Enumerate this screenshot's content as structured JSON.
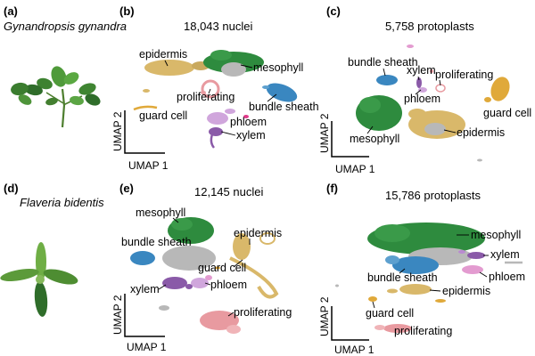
{
  "panels": {
    "a": {
      "letter": "(a)",
      "species": "Gynandropsis gynandra"
    },
    "b": {
      "letter": "(b)",
      "title": "18,043 nuclei",
      "labels": {
        "epidermis": "epidermis",
        "mesophyll": "mesophyll",
        "proliferating": "proliferating",
        "bundle_sheath": "bundle sheath",
        "guard_cell": "guard cell",
        "phloem": "phloem",
        "xylem": "xylem"
      }
    },
    "c": {
      "letter": "(c)",
      "title": "5,758 protoplasts",
      "labels": {
        "bundle_sheath": "bundle sheath",
        "xylem": "xylem",
        "proliferating": "proliferating",
        "phloem": "phloem",
        "guard_cell": "guard cell",
        "mesophyll": "mesophyll",
        "epidermis": "epidermis"
      }
    },
    "d": {
      "letter": "(d)",
      "species": "Flaveria bidentis"
    },
    "e": {
      "letter": "(e)",
      "title": "12,145 nuclei",
      "labels": {
        "mesophyll": "mesophyll",
        "epidermis": "epidermis",
        "bundle_sheath": "bundle sheath",
        "guard_cell": "guard cell",
        "xylem": "xylem",
        "phloem": "phloem",
        "proliferating": "proliferating"
      }
    },
    "f": {
      "letter": "(f)",
      "title": "15,786 protoplasts",
      "labels": {
        "mesophyll": "mesophyll",
        "xylem": "xylem",
        "phloem": "phloem",
        "bundle_sheath": "bundle sheath",
        "epidermis": "epidermis",
        "guard_cell": "guard cell",
        "proliferating": "proliferating"
      }
    }
  },
  "axis_labels": {
    "umap1": "UMAP 1",
    "umap2": "UMAP 2"
  },
  "colors": {
    "mesophyll": "#2e8b3e",
    "epidermis": "#d9b86a",
    "bundle_sheath": "#3a87c0",
    "phloem": "#d0a6dc",
    "xylem": "#8a5aa8",
    "proliferating": "#e89aa0",
    "guard_cell": "#e0a93a",
    "unassigned": "#b8b8b8",
    "leaf_light": "#6fae45",
    "leaf_dark": "#2f6d2a"
  }
}
